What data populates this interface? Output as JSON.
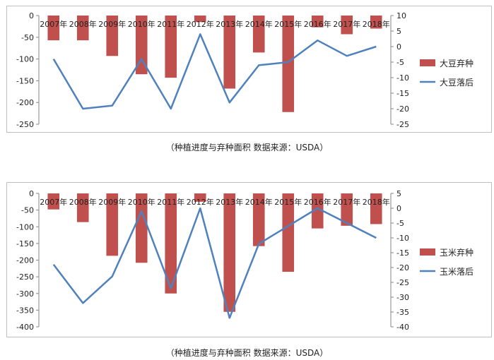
{
  "chart_data": [
    {
      "type": "bar+line",
      "categories": [
        "2007年",
        "2008年",
        "2009年",
        "2010年",
        "2011年",
        "2012年",
        "2013年",
        "2014年",
        "2015年",
        "2016年",
        "2017年",
        "2018年"
      ],
      "series": [
        {
          "name": "大豆弃种",
          "type": "bar",
          "axis": "left",
          "color": "#c0504d",
          "values": [
            -57,
            -57,
            -93,
            -135,
            -143,
            -15,
            -168,
            -85,
            -222,
            -27,
            -43,
            -30
          ]
        },
        {
          "name": "大豆落后",
          "type": "line",
          "axis": "right",
          "color": "#4f81bd",
          "values": [
            -4,
            -20,
            -19,
            -4,
            -20,
            4,
            -18,
            -6,
            -5,
            2,
            -3,
            0
          ]
        }
      ],
      "left_axis": {
        "ylim": [
          -250,
          0
        ],
        "ticks": [
          0,
          -50,
          -100,
          -150,
          -200,
          -250
        ]
      },
      "right_axis": {
        "ylim": [
          -25,
          10
        ],
        "ticks": [
          10,
          5,
          0,
          -5,
          -10,
          -15,
          -20,
          -25
        ]
      },
      "legend_position": "right"
    },
    {
      "type": "bar+line",
      "categories": [
        "2007年",
        "2008年",
        "2009年",
        "2010年",
        "2011年",
        "2012年",
        "2013年",
        "2014年",
        "2015年",
        "2016年",
        "2017年",
        "2018年"
      ],
      "series": [
        {
          "name": "玉米弃种",
          "type": "bar",
          "axis": "left",
          "color": "#c0504d",
          "values": [
            -48,
            -86,
            -187,
            -208,
            -300,
            -25,
            -355,
            -158,
            -235,
            -105,
            -97,
            -92
          ]
        },
        {
          "name": "玉米落后",
          "type": "line",
          "axis": "right",
          "color": "#4f81bd",
          "values": [
            -19,
            -32,
            -23,
            -1,
            -27,
            0,
            -37,
            -12,
            -6,
            0,
            -5,
            -10
          ]
        }
      ],
      "left_axis": {
        "ylim": [
          -400,
          0
        ],
        "ticks": [
          0,
          -50,
          -100,
          -150,
          -200,
          -250,
          -300,
          -350,
          -400
        ]
      },
      "right_axis": {
        "ylim": [
          -40,
          5
        ],
        "ticks": [
          5,
          0,
          -5,
          -10,
          -15,
          -20,
          -25,
          -30,
          -35,
          -40
        ]
      },
      "legend_position": "right"
    }
  ],
  "captions": [
    "（种植进度与弃种面积    数据来源：USDA）",
    "（种植进度与弃种面积    数据来源：USDA）"
  ]
}
